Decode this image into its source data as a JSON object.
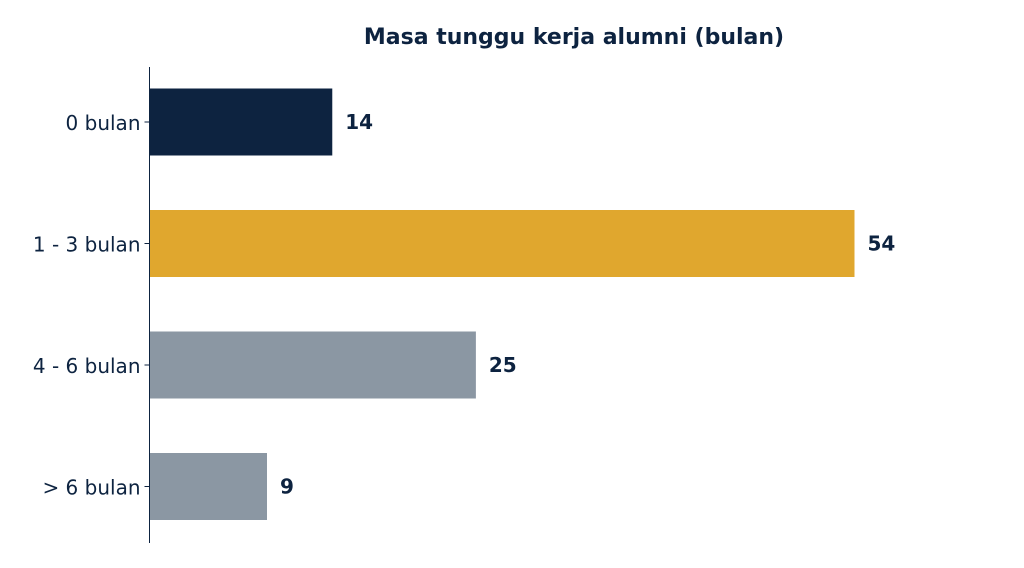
{
  "chart_data": {
    "type": "bar",
    "orientation": "horizontal",
    "title": "Masa tunggu kerja alumni (bulan)",
    "xlabel": "",
    "ylabel": "",
    "categories": [
      "0 bulan",
      "1 - 3 bulan",
      "4 - 6 bulan",
      "> 6 bulan"
    ],
    "values": [
      14,
      54,
      25,
      9
    ],
    "colors": [
      "#0d2340",
      "#e0a72e",
      "#8b97a3",
      "#8b97a3"
    ],
    "xlim": [
      0,
      60
    ],
    "grid": false,
    "legend": "none",
    "axis_color": "#0d2340",
    "text_color": "#0d2340"
  }
}
